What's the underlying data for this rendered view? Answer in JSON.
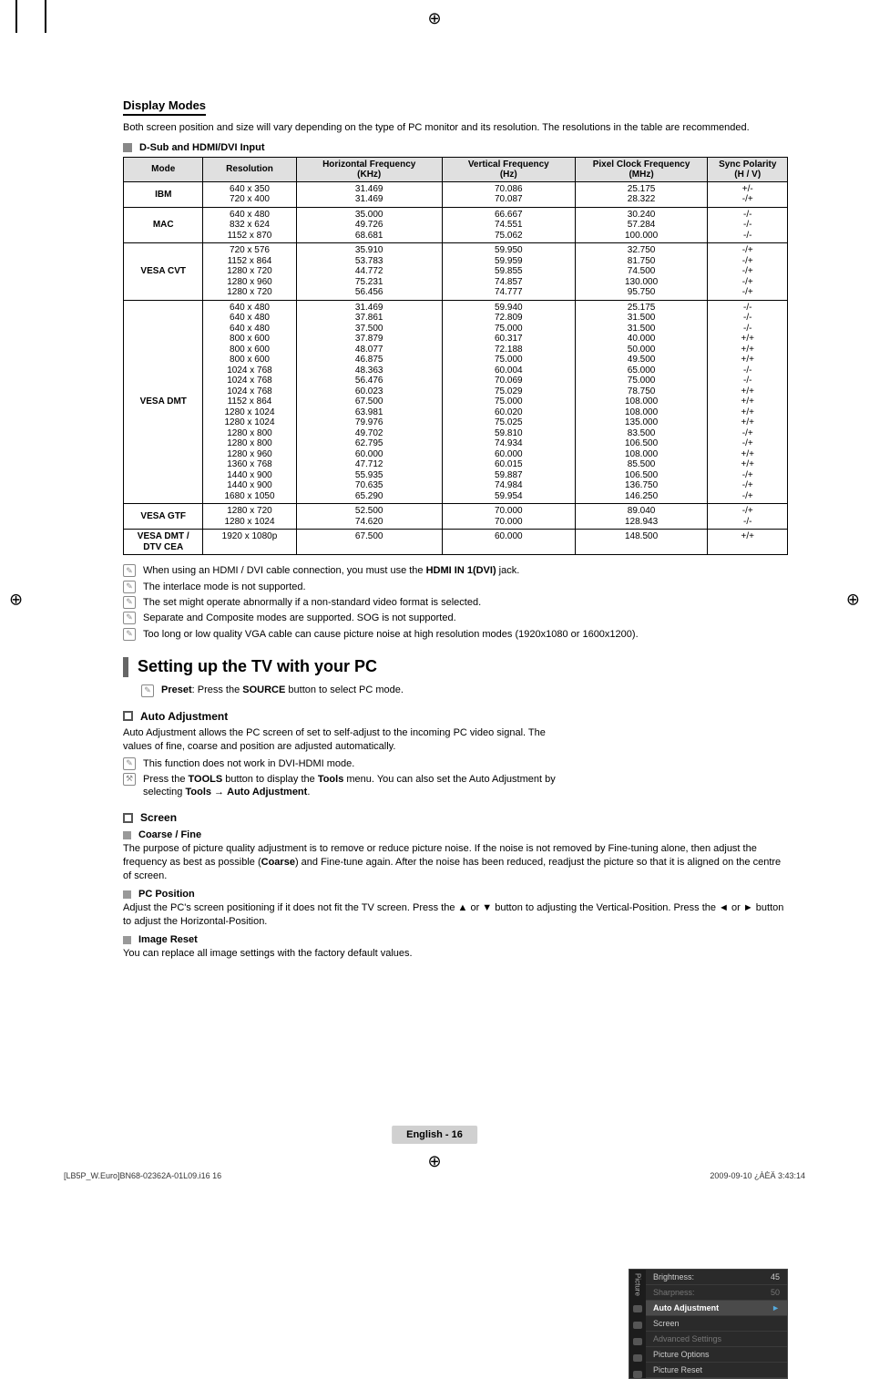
{
  "header": {
    "title": "Display Modes",
    "intro": "Both screen position and size will vary depending on the type of PC monitor and its resolution. The resolutions in the table are recommended.",
    "sub_bullet": "D-Sub and HDMI/DVI Input"
  },
  "table": {
    "columns": [
      "Mode",
      "Resolution",
      "Horizontal Frequency (KHz)",
      "Vertical Frequency (Hz)",
      "Pixel Clock Frequency (MHz)",
      "Sync Polarity (H / V)"
    ],
    "col_widths": [
      "12%",
      "14%",
      "22%",
      "20%",
      "20%",
      "12%"
    ],
    "header_bg": "#e0e0e0",
    "border_color": "#000000",
    "rows": [
      {
        "mode": "IBM",
        "res": [
          "640 x 350",
          "720 x 400"
        ],
        "hf": [
          "31.469",
          "31.469"
        ],
        "vf": [
          "70.086",
          "70.087"
        ],
        "pc": [
          "25.175",
          "28.322"
        ],
        "sp": [
          "+/-",
          "-/+"
        ]
      },
      {
        "mode": "MAC",
        "res": [
          "640 x 480",
          "832 x 624",
          "1152 x 870"
        ],
        "hf": [
          "35.000",
          "49.726",
          "68.681"
        ],
        "vf": [
          "66.667",
          "74.551",
          "75.062"
        ],
        "pc": [
          "30.240",
          "57.284",
          "100.000"
        ],
        "sp": [
          "-/-",
          "-/-",
          "-/-"
        ]
      },
      {
        "mode": "VESA CVT",
        "res": [
          "720 x 576",
          "1152 x 864",
          "1280 x 720",
          "1280 x 960",
          "1280 x 720"
        ],
        "hf": [
          "35.910",
          "53.783",
          "44.772",
          "75.231",
          "56.456"
        ],
        "vf": [
          "59.950",
          "59.959",
          "59.855",
          "74.857",
          "74.777"
        ],
        "pc": [
          "32.750",
          "81.750",
          "74.500",
          "130.000",
          "95.750"
        ],
        "sp": [
          "-/+",
          "-/+",
          "-/+",
          "-/+",
          "-/+"
        ]
      },
      {
        "mode": "VESA DMT",
        "res": [
          "640 x 480",
          "640 x 480",
          "640 x 480",
          "800 x 600",
          "800 x 600",
          "800 x 600",
          "1024 x 768",
          "1024 x 768",
          "1024 x 768",
          "1152 x 864",
          "1280 x 1024",
          "1280 x 1024",
          "1280 x 800",
          "1280 x 800",
          "1280 x 960",
          "1360 x 768",
          "1440 x 900",
          "1440 x 900",
          "1680 x 1050"
        ],
        "hf": [
          "31.469",
          "37.861",
          "37.500",
          "37.879",
          "48.077",
          "46.875",
          "48.363",
          "56.476",
          "60.023",
          "67.500",
          "63.981",
          "79.976",
          "49.702",
          "62.795",
          "60.000",
          "47.712",
          "55.935",
          "70.635",
          "65.290"
        ],
        "vf": [
          "59.940",
          "72.809",
          "75.000",
          "60.317",
          "72.188",
          "75.000",
          "60.004",
          "70.069",
          "75.029",
          "75.000",
          "60.020",
          "75.025",
          "59.810",
          "74.934",
          "60.000",
          "60.015",
          "59.887",
          "74.984",
          "59.954"
        ],
        "pc": [
          "25.175",
          "31.500",
          "31.500",
          "40.000",
          "50.000",
          "49.500",
          "65.000",
          "75.000",
          "78.750",
          "108.000",
          "108.000",
          "135.000",
          "83.500",
          "106.500",
          "108.000",
          "85.500",
          "106.500",
          "136.750",
          "146.250"
        ],
        "sp": [
          "-/-",
          "-/-",
          "-/-",
          "+/+",
          "+/+",
          "+/+",
          "-/-",
          "-/-",
          "+/+",
          "+/+",
          "+/+",
          "+/+",
          "-/+",
          "-/+",
          "+/+",
          "+/+",
          "-/+",
          "-/+",
          "-/+"
        ]
      },
      {
        "mode": "VESA GTF",
        "res": [
          "1280 x 720",
          "1280 x 1024"
        ],
        "hf": [
          "52.500",
          "74.620"
        ],
        "vf": [
          "70.000",
          "70.000"
        ],
        "pc": [
          "89.040",
          "128.943"
        ],
        "sp": [
          "-/+",
          "-/-"
        ]
      },
      {
        "mode": "VESA DMT / DTV CEA",
        "res": [
          "1920 x 1080p"
        ],
        "hf": [
          "67.500"
        ],
        "vf": [
          "60.000"
        ],
        "pc": [
          "148.500"
        ],
        "sp": [
          "+/+"
        ]
      }
    ]
  },
  "notes": [
    {
      "pre": "When using an HDMI / DVI cable connection, you must use the ",
      "b": "HDMI IN 1(DVI)",
      "post": " jack."
    },
    {
      "pre": "The interlace mode is not supported.",
      "b": "",
      "post": ""
    },
    {
      "pre": "The set might operate abnormally if a non-standard video format is selected.",
      "b": "",
      "post": ""
    },
    {
      "pre": "Separate and Composite modes are supported. SOG is not supported.",
      "b": "",
      "post": ""
    },
    {
      "pre": "Too long or low quality VGA cable can cause picture noise at high resolution modes (1920x1080 or 1600x1200).",
      "b": "",
      "post": ""
    }
  ],
  "section2": {
    "title": "Setting up the TV with your PC",
    "preset_pre": "Preset",
    "preset_mid": ": Press the ",
    "preset_b": "SOURCE",
    "preset_post": " button to select PC mode."
  },
  "auto_adj": {
    "title": "Auto Adjustment",
    "p": "Auto Adjustment allows the PC screen of set to self-adjust to the incoming PC video signal. The values of fine, coarse and position are adjusted automatically.",
    "n1": "This function does not work in DVI-HDMI mode.",
    "n2_pre": "Press the ",
    "n2_b1": "TOOLS",
    "n2_mid1": " button to display the ",
    "n2_b2": "Tools",
    "n2_mid2": " menu. You can also set the Auto Adjustment by selecting ",
    "n2_b3": "Tools",
    "n2_arrow": " → ",
    "n2_b4": "Auto Adjustment",
    "n2_post": "."
  },
  "screen": {
    "title": "Screen",
    "coarse_title": "Coarse / Fine",
    "coarse_p_pre": "The purpose of picture quality adjustment is to remove or reduce picture noise. If the noise is not removed by Fine-tuning alone, then adjust the frequency as best as possible (",
    "coarse_b": "Coarse",
    "coarse_p_post": ") and Fine-tune again. After the noise has been reduced, readjust the picture so that it is aligned on the centre of screen.",
    "pcpos_title": "PC Position",
    "pcpos_p": "Adjust the PC's screen positioning if it does not fit the TV screen. Press the ▲ or ▼ button to adjusting the Vertical-Position. Press the ◄ or ► button to adjust the Horizontal-Position.",
    "imgreset_title": "Image Reset",
    "imgreset_p": "You can replace all image settings with the factory default values."
  },
  "osd": {
    "side_label": "Picture",
    "rows": [
      {
        "l": "Brightness:",
        "r": "45",
        "dim": false,
        "sel": false
      },
      {
        "l": "Sharpness:",
        "r": "50",
        "dim": true,
        "sel": false
      },
      {
        "l": "Auto Adjustment",
        "r": "►",
        "dim": false,
        "sel": true
      },
      {
        "l": "Screen",
        "r": "",
        "dim": false,
        "sel": false
      },
      {
        "l": "Advanced Settings",
        "r": "",
        "dim": true,
        "sel": false
      },
      {
        "l": "Picture Options",
        "r": "",
        "dim": false,
        "sel": false
      },
      {
        "l": "Picture Reset",
        "r": "",
        "dim": false,
        "sel": false
      }
    ],
    "bg": "#2a2a2a",
    "sel_bg": "#4a4a4a",
    "text": "#cccccc",
    "dim_text": "#777777"
  },
  "footer": {
    "page": "English - 16",
    "meta_l": "[LB5P_W.Euro]BN68-02362A-01L09.i16   16",
    "meta_r": "2009-09-10   ¿ÀÈÄ 3:43:14"
  }
}
